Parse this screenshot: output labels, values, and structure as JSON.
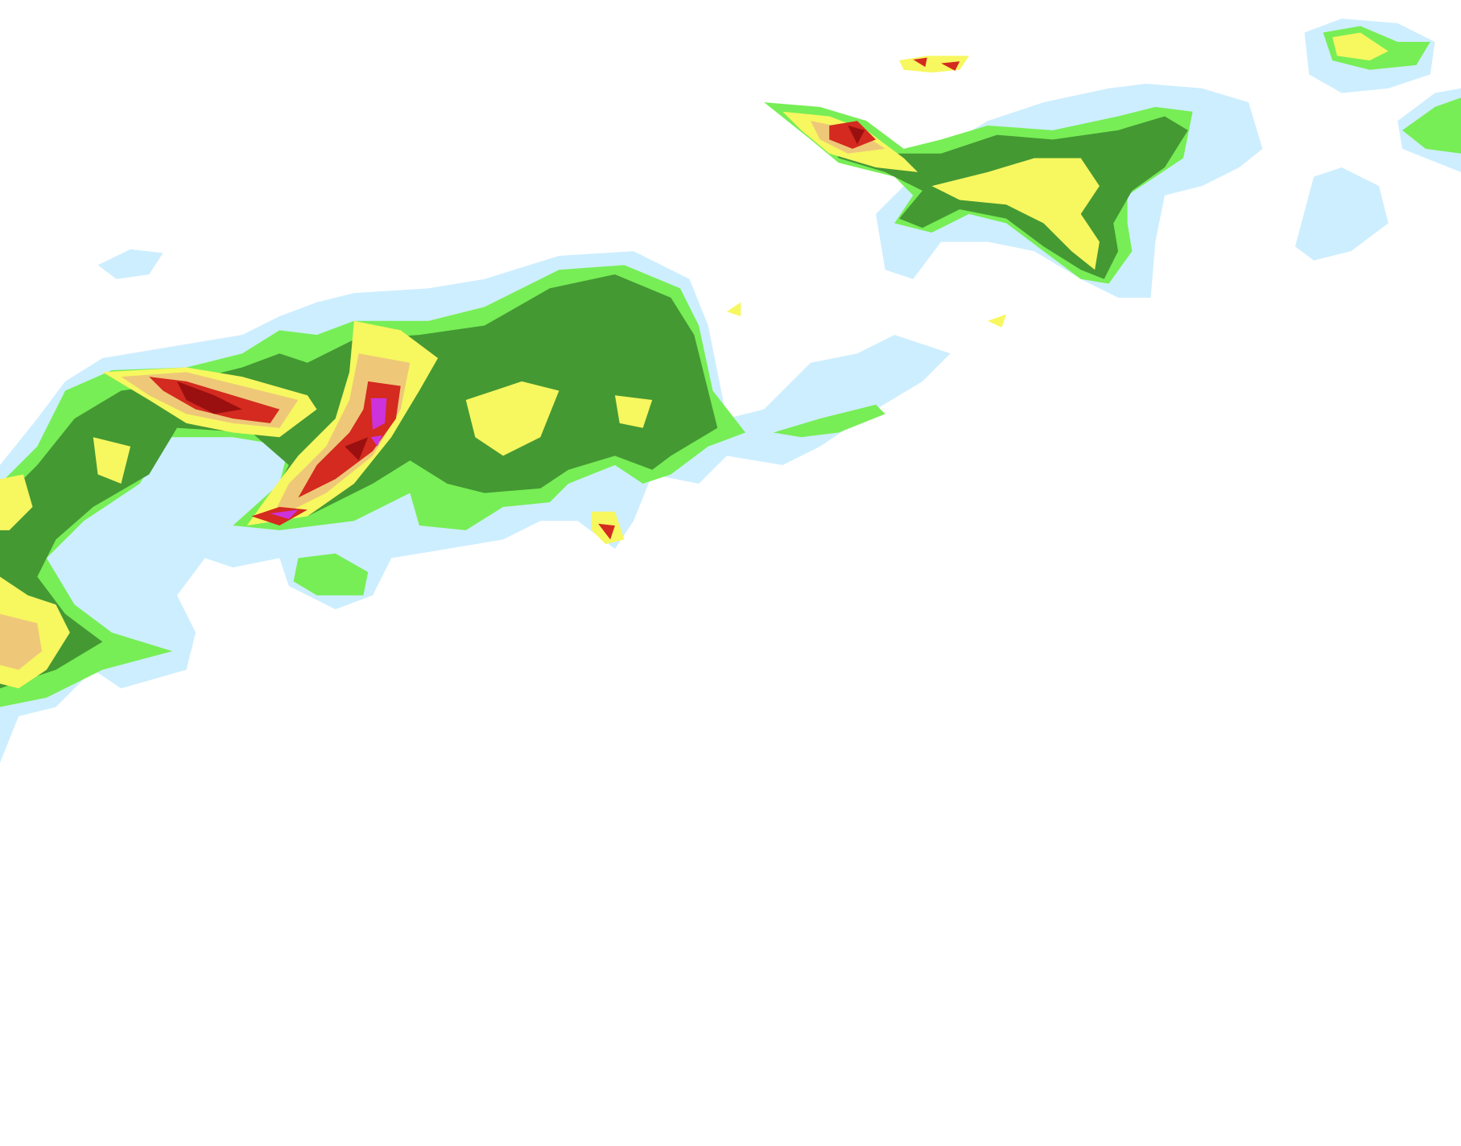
{
  "map": {
    "type": "precipitation-radar-overlay",
    "background": "#ffffff",
    "intensity_colors": {
      "very_light": "#cdeefe",
      "light": "#66bbf5",
      "light_moderate": "#77ee55",
      "moderate": "#449933",
      "heavy": "#f7f760",
      "heavier": "#eec878",
      "very_heavy": "#d42a1f",
      "intense": "#9a1010",
      "extreme": "#cc33dd"
    }
  }
}
